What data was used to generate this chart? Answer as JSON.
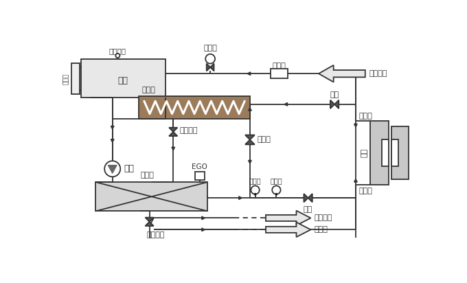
{
  "bg_color": "#ffffff",
  "line_color": "#333333",
  "brown_cooler": "#9b7b5a",
  "gray_fill": "#d8d8d8",
  "gray_light": "#e8e8e8",
  "labels": {
    "yoixiang": "液位鏡",
    "yoixianguan": "液位閥關",
    "youxiang": "油箱",
    "lenquegi": "冷卻器",
    "diancigan": "電磁閥",
    "guolvqi": "過濾器",
    "lengshuijin": "冷卻水進",
    "qiufa1": "球閥",
    "pangtongguan": "旁通閥",
    "muju": "模具",
    "mujuhui": "模具回",
    "zhimuju": "至模具",
    "paiouqiufa1": "排油球閥",
    "pump": "泵浦",
    "EGO": "EGO",
    "jiareqi": "加熱器",
    "genwenjii": "感溫計",
    "yalizhen": "壓力錶",
    "qiufa2": "球閥",
    "lengshuichu": "冷卻水出",
    "paioukou": "排油口",
    "paiouqiufa2": "排油球閥"
  }
}
